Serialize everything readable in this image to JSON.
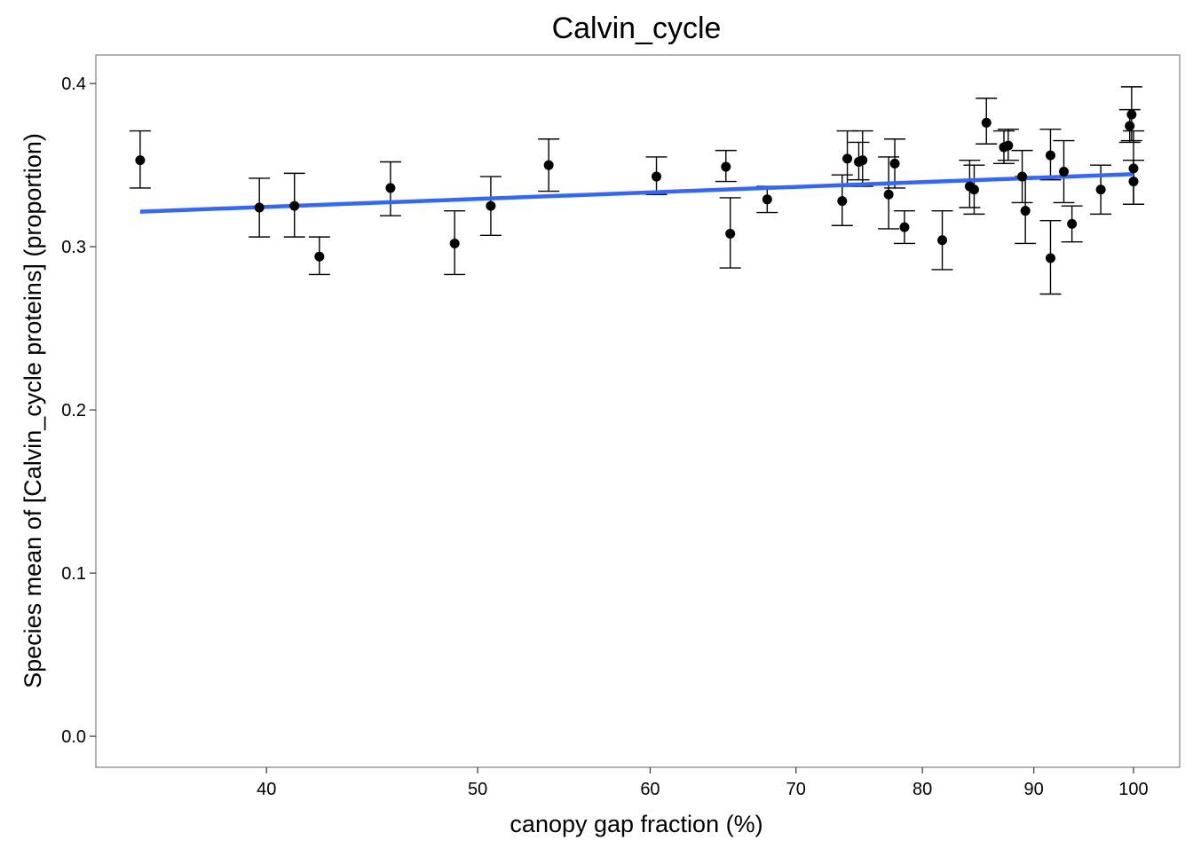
{
  "chart_data": {
    "type": "scatter",
    "title": "Calvin_cycle",
    "xlabel": "canopy gap fraction (%)",
    "ylabel": "Species mean of [Calvin_cycle proteins] (proportion)",
    "x_scale": "log10",
    "xlim": [
      33.4,
      105
    ],
    "ylim": [
      -0.019,
      0.4175
    ],
    "x_ticks": [
      40,
      50,
      60,
      70,
      80,
      90,
      100
    ],
    "x_tick_labels": [
      "40",
      "50",
      "60",
      "70",
      "80",
      "90",
      "100"
    ],
    "y_ticks": [
      0.0,
      0.1,
      0.2,
      0.3,
      0.4
    ],
    "y_tick_labels": [
      "0.0",
      "0.1",
      "0.2",
      "0.3",
      "0.4"
    ],
    "grid": false,
    "colors": {
      "points": "#000000",
      "error_bars": "#000000",
      "trend_line": "#3366FF",
      "panel_border": "#7f7f7f"
    },
    "points": [
      {
        "x": 35.0,
        "y": 0.353,
        "ymin": 0.336,
        "ymax": 0.371
      },
      {
        "x": 39.7,
        "y": 0.324,
        "ymin": 0.306,
        "ymax": 0.342
      },
      {
        "x": 41.2,
        "y": 0.325,
        "ymin": 0.306,
        "ymax": 0.345
      },
      {
        "x": 42.3,
        "y": 0.294,
        "ymin": 0.283,
        "ymax": 0.306
      },
      {
        "x": 45.6,
        "y": 0.336,
        "ymin": 0.319,
        "ymax": 0.352
      },
      {
        "x": 48.8,
        "y": 0.302,
        "ymin": 0.283,
        "ymax": 0.322
      },
      {
        "x": 50.7,
        "y": 0.325,
        "ymin": 0.307,
        "ymax": 0.343
      },
      {
        "x": 53.9,
        "y": 0.35,
        "ymin": 0.334,
        "ymax": 0.366
      },
      {
        "x": 60.4,
        "y": 0.343,
        "ymin": 0.332,
        "ymax": 0.355
      },
      {
        "x": 65.0,
        "y": 0.349,
        "ymin": 0.34,
        "ymax": 0.359
      },
      {
        "x": 65.3,
        "y": 0.308,
        "ymin": 0.287,
        "ymax": 0.33
      },
      {
        "x": 67.9,
        "y": 0.329,
        "ymin": 0.321,
        "ymax": 0.337
      },
      {
        "x": 73.5,
        "y": 0.328,
        "ymin": 0.313,
        "ymax": 0.344
      },
      {
        "x": 73.9,
        "y": 0.354,
        "ymin": 0.337,
        "ymax": 0.371
      },
      {
        "x": 74.8,
        "y": 0.352,
        "ymin": 0.341,
        "ymax": 0.364
      },
      {
        "x": 75.1,
        "y": 0.353,
        "ymin": 0.337,
        "ymax": 0.371
      },
      {
        "x": 77.2,
        "y": 0.332,
        "ymin": 0.311,
        "ymax": 0.355
      },
      {
        "x": 77.7,
        "y": 0.351,
        "ymin": 0.336,
        "ymax": 0.366
      },
      {
        "x": 78.5,
        "y": 0.312,
        "ymin": 0.302,
        "ymax": 0.322
      },
      {
        "x": 81.7,
        "y": 0.304,
        "ymin": 0.286,
        "ymax": 0.322
      },
      {
        "x": 84.1,
        "y": 0.337,
        "ymin": 0.324,
        "ymax": 0.353
      },
      {
        "x": 84.5,
        "y": 0.335,
        "ymin": 0.32,
        "ymax": 0.35
      },
      {
        "x": 85.6,
        "y": 0.376,
        "ymin": 0.363,
        "ymax": 0.391
      },
      {
        "x": 87.2,
        "y": 0.361,
        "ymin": 0.351,
        "ymax": 0.371
      },
      {
        "x": 87.6,
        "y": 0.362,
        "ymin": 0.353,
        "ymax": 0.372
      },
      {
        "x": 88.9,
        "y": 0.343,
        "ymin": 0.327,
        "ymax": 0.359
      },
      {
        "x": 89.2,
        "y": 0.322,
        "ymin": 0.302,
        "ymax": 0.343
      },
      {
        "x": 91.6,
        "y": 0.356,
        "ymin": 0.341,
        "ymax": 0.372
      },
      {
        "x": 91.6,
        "y": 0.293,
        "ymin": 0.271,
        "ymax": 0.316
      },
      {
        "x": 92.9,
        "y": 0.346,
        "ymin": 0.327,
        "ymax": 0.365
      },
      {
        "x": 93.7,
        "y": 0.314,
        "ymin": 0.303,
        "ymax": 0.325
      },
      {
        "x": 96.6,
        "y": 0.335,
        "ymin": 0.32,
        "ymax": 0.35
      },
      {
        "x": 99.6,
        "y": 0.374,
        "ymin": 0.364,
        "ymax": 0.384
      },
      {
        "x": 99.8,
        "y": 0.381,
        "ymin": 0.365,
        "ymax": 0.398
      },
      {
        "x": 100.0,
        "y": 0.348,
        "ymin": 0.326,
        "ymax": 0.371
      },
      {
        "x": 100.0,
        "y": 0.34,
        "ymin": 0.326,
        "ymax": 0.353
      }
    ],
    "trend_line": {
      "x": [
        35.0,
        100.0
      ],
      "y": [
        0.3215,
        0.3445
      ]
    }
  }
}
